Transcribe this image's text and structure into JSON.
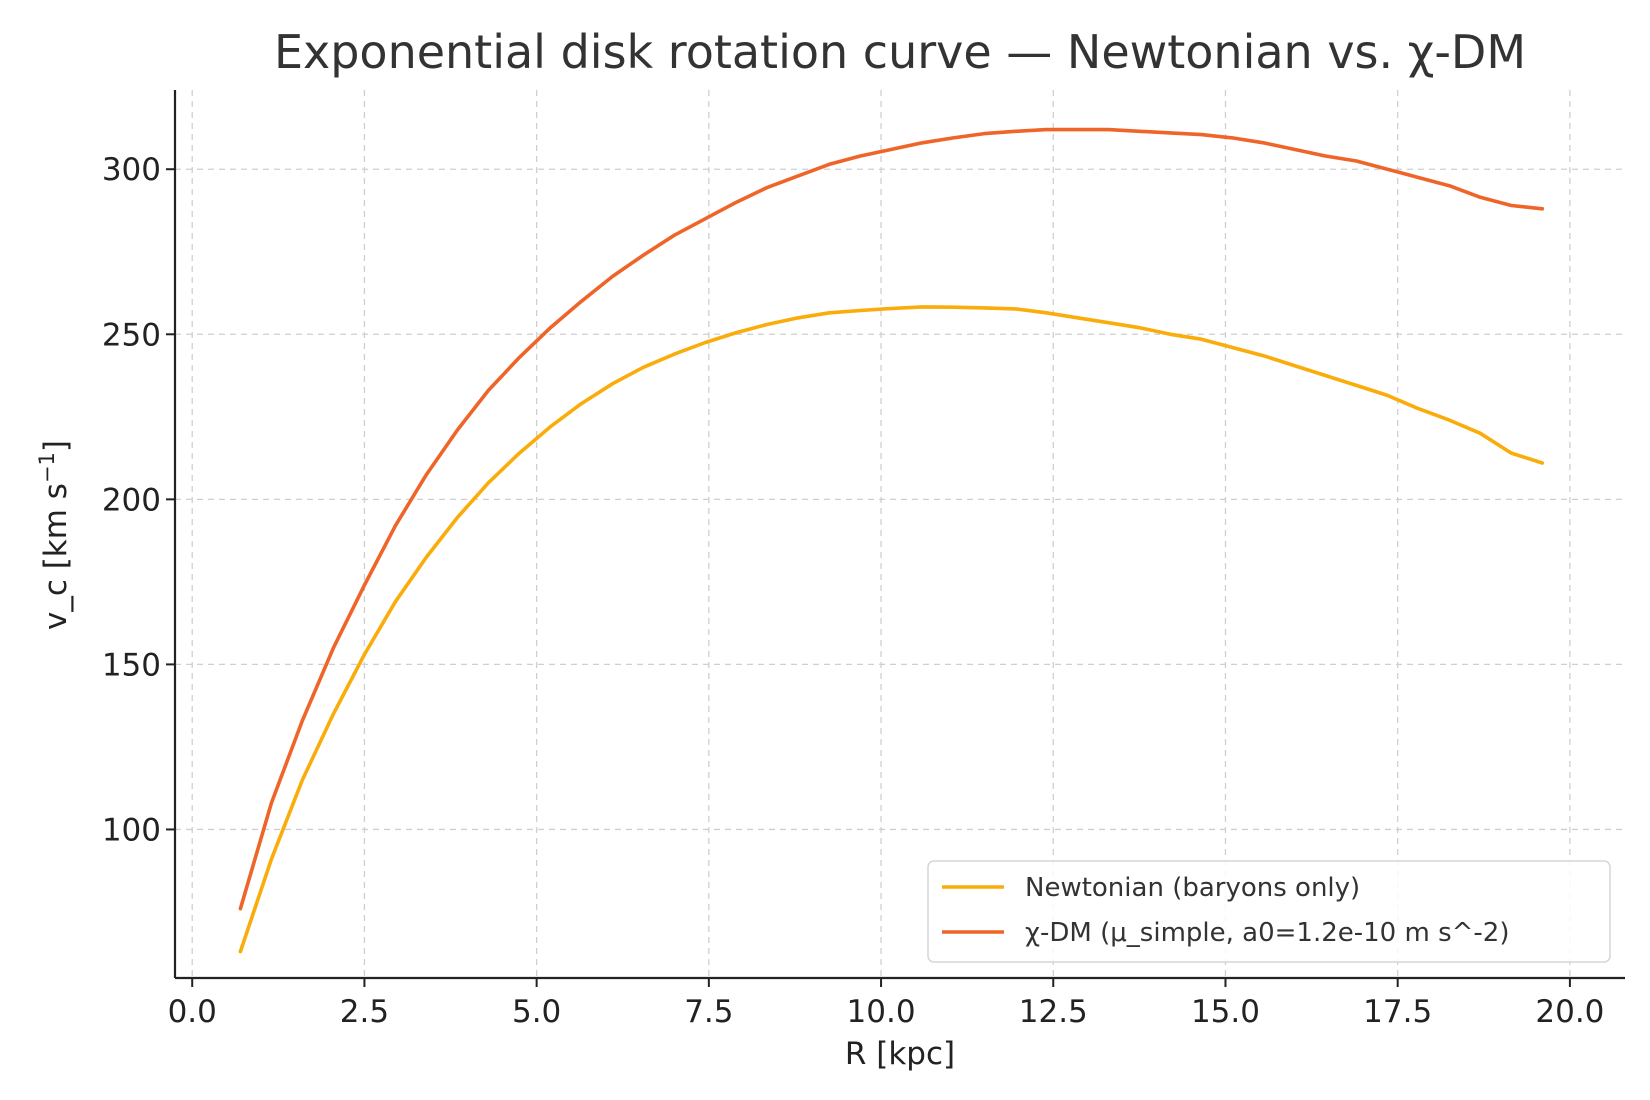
{
  "chart_data": {
    "type": "line",
    "title": "Exponential disk rotation curve — Newtonian vs. χ-DM",
    "xlabel": "R [kpc]",
    "ylabel": "v_c [km s",
    "ylabel_sup": "−1",
    "ylabel_end": "]",
    "xlim": [
      -0.25,
      20.8
    ],
    "ylim": [
      55,
      324
    ],
    "xticks": [
      0.0,
      2.5,
      5.0,
      7.5,
      10.0,
      12.5,
      15.0,
      17.5,
      20.0
    ],
    "xtick_labels": [
      "0.0",
      "2.5",
      "5.0",
      "7.5",
      "10.0",
      "12.5",
      "15.0",
      "17.5",
      "20.0"
    ],
    "yticks": [
      100,
      150,
      200,
      250,
      300
    ],
    "ytick_labels": [
      "100",
      "150",
      "200",
      "250",
      "300"
    ],
    "grid": true,
    "legend_position": "bottom-right",
    "series": [
      {
        "name": "Newtonian (baryons only)",
        "color": "#f9ac0a",
        "x": [
          0.7,
          1.15,
          1.6,
          2.05,
          2.5,
          2.95,
          3.4,
          3.85,
          4.3,
          4.75,
          5.2,
          5.65,
          6.1,
          6.55,
          7.0,
          7.45,
          7.9,
          8.35,
          8.8,
          9.25,
          9.7,
          10.15,
          10.6,
          11.05,
          11.5,
          11.95,
          12.4,
          12.85,
          13.3,
          13.75,
          14.2,
          14.65,
          15.1,
          15.55,
          16.0,
          16.45,
          16.9,
          17.35,
          17.8,
          18.25,
          18.7,
          19.15,
          19.6
        ],
        "y": [
          63,
          91,
          115,
          135,
          153,
          169,
          182.5,
          194.5,
          205,
          214,
          222,
          229,
          235,
          240,
          244,
          247.5,
          250.5,
          253,
          255,
          256.5,
          257.2,
          257.8,
          258.3,
          258.2,
          258,
          257.7,
          256.5,
          255,
          253.5,
          252,
          250,
          248.5,
          246,
          243.5,
          240.5,
          237.5,
          234.5,
          231.5,
          227.5,
          224,
          220,
          214,
          211
        ]
      },
      {
        "name": "χ-DM (μ_simple, a0=1.2e-10 m s^-2)",
        "color": "#ef6529",
        "x": [
          0.7,
          1.15,
          1.6,
          2.05,
          2.5,
          2.95,
          3.4,
          3.85,
          4.3,
          4.75,
          5.2,
          5.65,
          6.1,
          6.55,
          7.0,
          7.45,
          7.9,
          8.35,
          8.8,
          9.25,
          9.7,
          10.15,
          10.6,
          11.05,
          11.5,
          11.95,
          12.4,
          12.85,
          13.3,
          13.75,
          14.2,
          14.65,
          15.1,
          15.55,
          16.0,
          16.45,
          16.9,
          17.35,
          17.8,
          18.25,
          18.7,
          19.15,
          19.6
        ],
        "y": [
          76,
          108,
          133,
          155,
          174,
          192,
          207.5,
          221,
          233,
          243,
          252,
          260,
          267.5,
          274,
          280,
          285,
          290,
          294.5,
          298,
          301.5,
          304,
          306,
          308,
          309.5,
          310.8,
          311.5,
          312,
          312,
          312,
          311.5,
          311,
          310.5,
          309.5,
          308,
          306,
          304,
          302.5,
          300,
          297.5,
          295,
          291.5,
          289,
          288
        ]
      }
    ]
  }
}
